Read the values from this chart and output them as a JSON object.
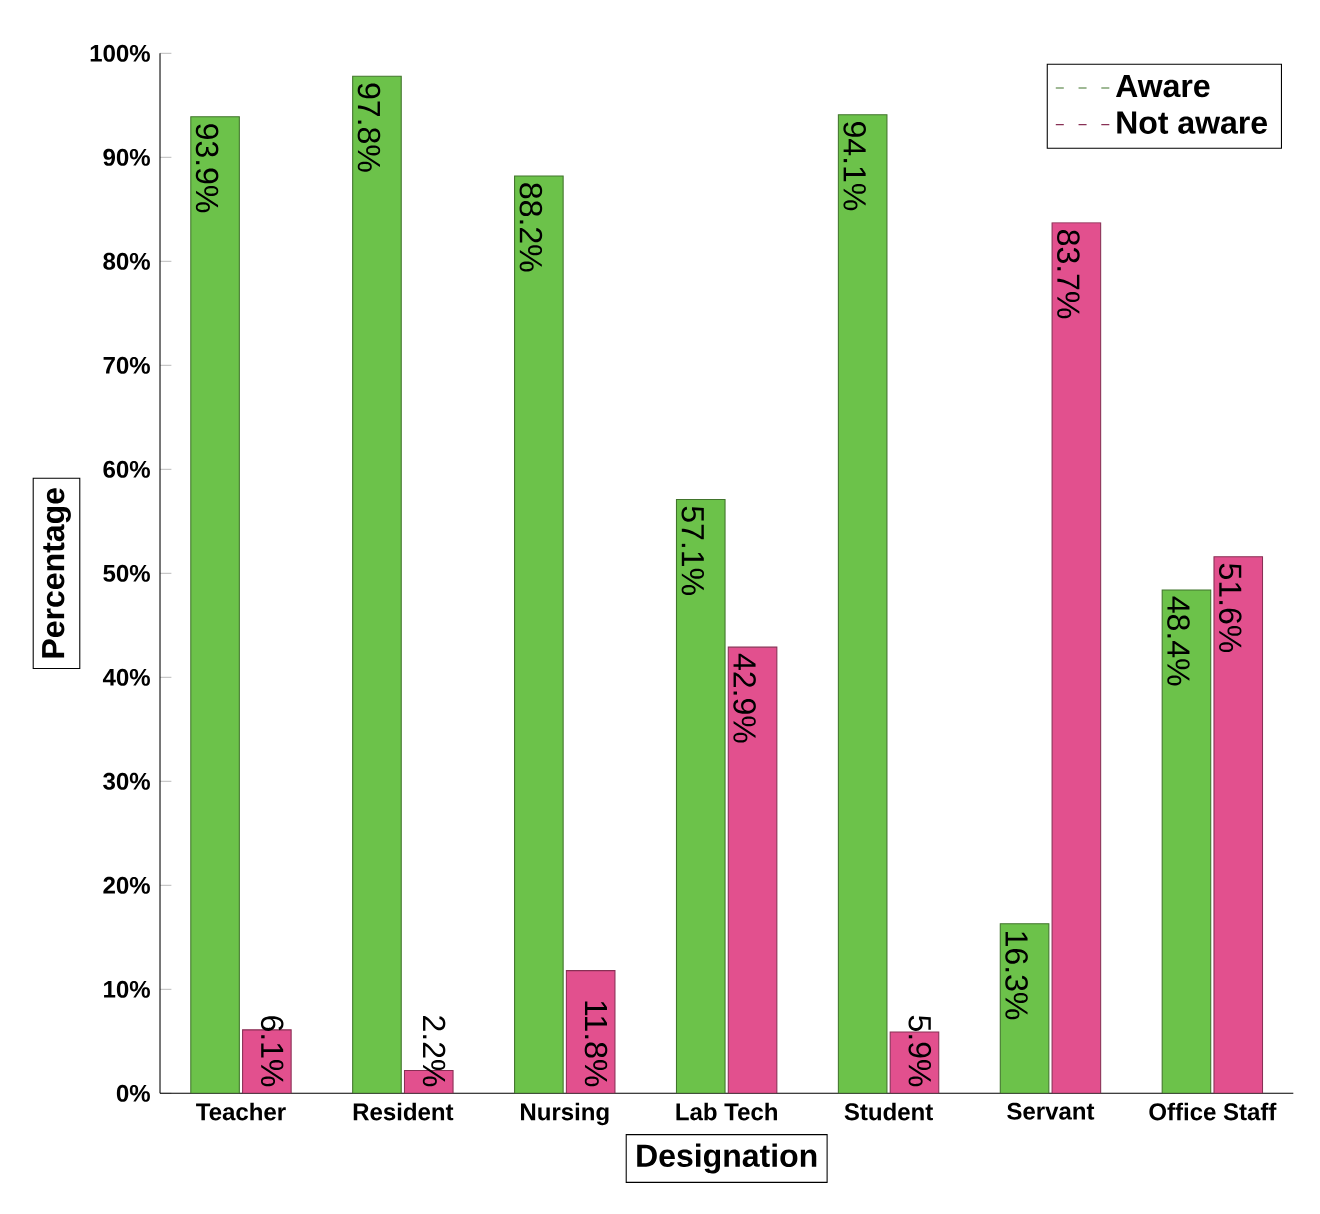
{
  "chart_data": {
    "type": "bar",
    "xlabel": "Designation",
    "ylabel": "Percentage",
    "categories": [
      "Teacher",
      "Resident",
      "Nursing",
      "Lab Tech",
      "Student",
      "Servant",
      "Office Staff"
    ],
    "series": [
      {
        "name": "Aware",
        "color": "#6cc24a",
        "values": [
          93.9,
          97.8,
          88.2,
          57.1,
          94.1,
          16.3,
          48.4
        ],
        "value_labels": [
          "93.9%",
          "97.8%",
          "88.2%",
          "57.1%",
          "94.1%",
          "16.3%",
          "48.4%"
        ]
      },
      {
        "name": "Not aware",
        "color": "#e2508e",
        "values": [
          6.1,
          2.2,
          11.8,
          42.9,
          5.9,
          83.7,
          51.6
        ],
        "value_labels": [
          "6.1%",
          "2.2%",
          "11.8%",
          "42.9%",
          "5.9%",
          "83.7%",
          "51.6%"
        ]
      }
    ],
    "ylim": [
      0,
      100
    ],
    "yticks": [
      {
        "value": 0,
        "label": "0%"
      },
      {
        "value": 10,
        "label": "10%"
      },
      {
        "value": 20,
        "label": "20%"
      },
      {
        "value": 30,
        "label": "30%"
      },
      {
        "value": 40,
        "label": "40%"
      },
      {
        "value": 50,
        "label": "50%"
      },
      {
        "value": 60,
        "label": "60%"
      },
      {
        "value": 70,
        "label": "70%"
      },
      {
        "value": 80,
        "label": "80%"
      },
      {
        "value": 90,
        "label": "90%"
      },
      {
        "value": 100,
        "label": "100%"
      }
    ],
    "legend": "top right",
    "grid": false
  }
}
